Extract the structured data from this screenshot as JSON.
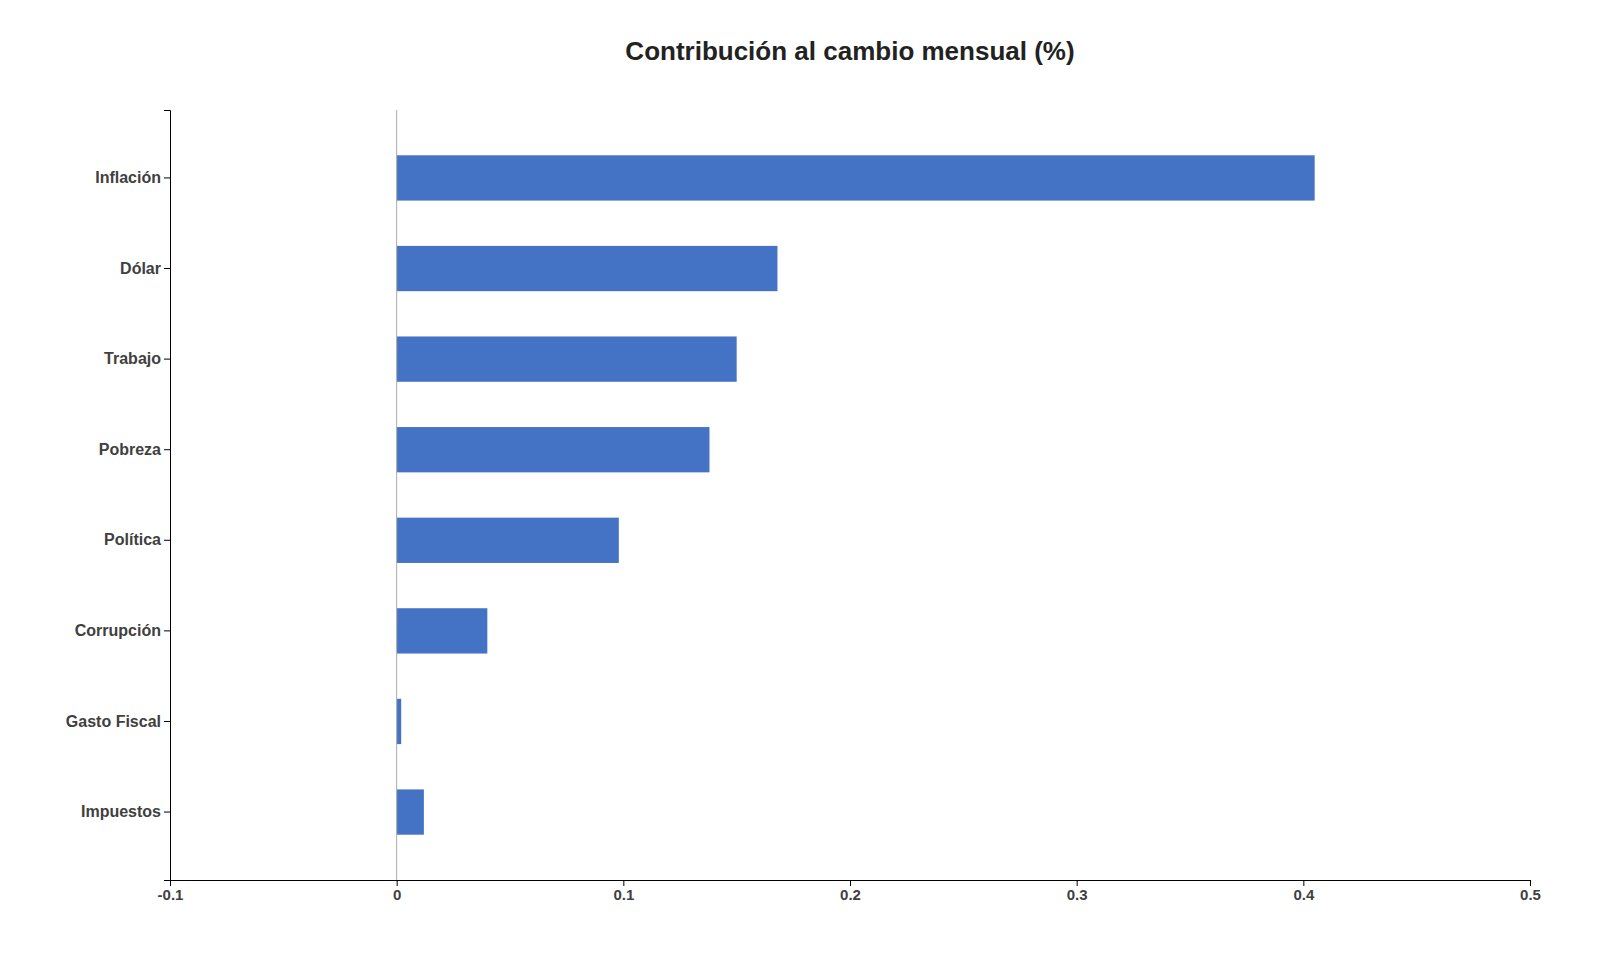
{
  "chart_data": {
    "type": "bar",
    "title": "Contribución al cambio mensual (%)",
    "categories": [
      "Inflación",
      "Dólar",
      "Trabajo",
      "Pobreza",
      "Política",
      "Corrupción",
      "Gasto Fiscal",
      "Impuestos"
    ],
    "values": [
      0.405,
      0.168,
      0.15,
      0.138,
      0.098,
      0.04,
      0.002,
      0.012
    ],
    "color": "#4472c4",
    "orientation": "horizontal",
    "xlim": [
      -0.1,
      0.5
    ],
    "xticks": [
      -0.1,
      0,
      0.1,
      0.2,
      0.3,
      0.4,
      0.5
    ],
    "grid": false
  }
}
